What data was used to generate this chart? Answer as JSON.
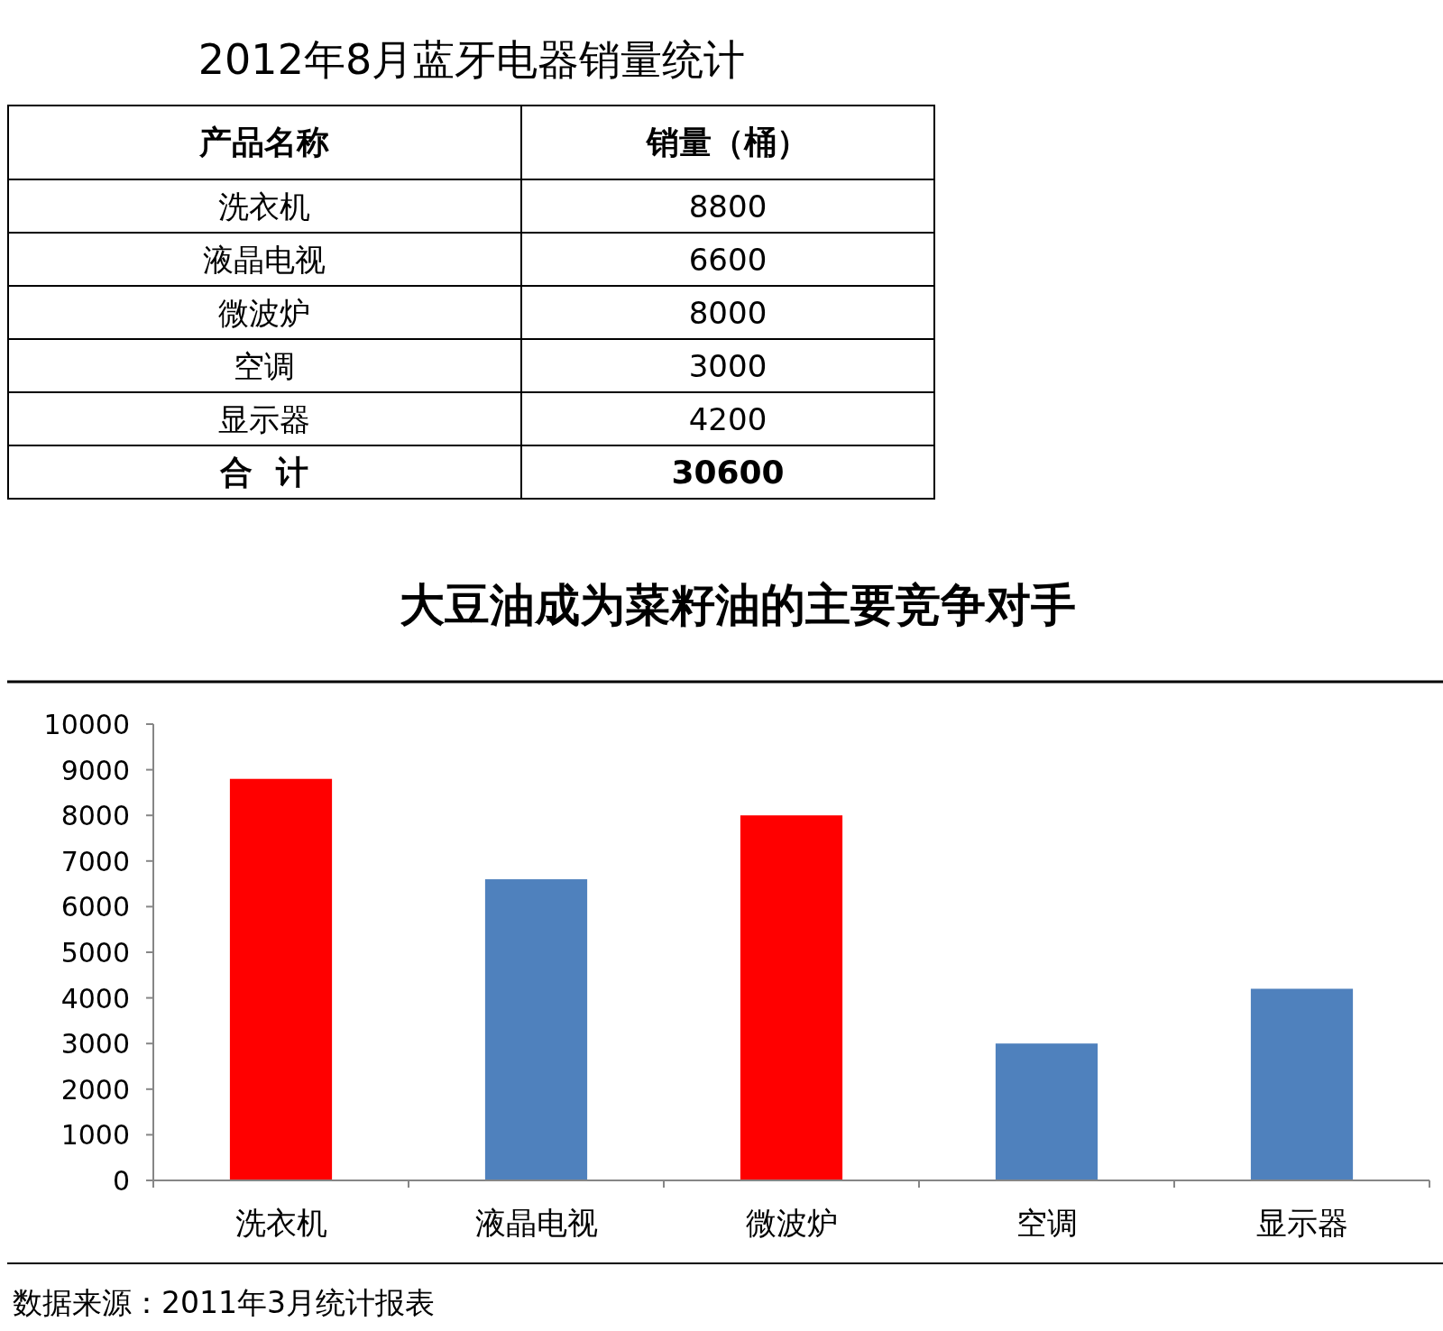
{
  "chart_data": [
    {
      "type": "other",
      "title": "2012年8月蓝牙电器销量统计",
      "annotations": [
        "产品名称",
        "销量（桶）",
        "洗衣机",
        "8800",
        "液晶电视",
        "6600",
        "微波炉",
        "8000",
        "空调",
        "3000",
        "显示器",
        "4200",
        "合  计",
        "30600"
      ]
    },
    {
      "type": "bar",
      "title": "大豆油成为菜籽油的主要竞争对手",
      "categories": [
        "洗衣机",
        "液晶电视",
        "微波炉",
        "空调",
        "显示器"
      ],
      "values": [
        8800,
        6600,
        8000,
        3000,
        4200
      ],
      "colors": [
        "#ff0000",
        "#4f81bd",
        "#ff0000",
        "#4f81bd",
        "#4f81bd"
      ],
      "ylim": [
        0,
        10000
      ],
      "yticks": [
        0,
        1000,
        2000,
        3000,
        4000,
        5000,
        6000,
        7000,
        8000,
        9000,
        10000
      ],
      "annotations": [
        "数据来源：2011年3月统计报表"
      ]
    }
  ]
}
